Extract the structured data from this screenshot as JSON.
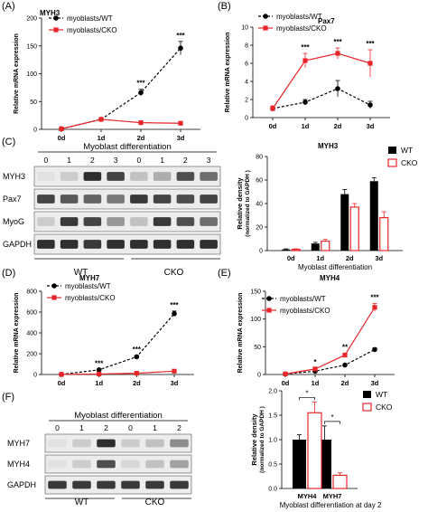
{
  "colors": {
    "wt": "#000000",
    "cko": "#e8262a",
    "axis": "#000000",
    "blot_bg": "#ececec",
    "blot_band": "#1a1a1a"
  },
  "panel_letters": {
    "A": "(A)",
    "B": "(B)",
    "C": "(C)",
    "D": "(D)",
    "E": "(E)",
    "F": "(F)"
  },
  "common": {
    "y_rel_mrna": "Relative mRNA expression",
    "days": [
      "0d",
      "1d",
      "2d",
      "3d"
    ],
    "wt_line": "myoblasts/WT",
    "cko_line": "myoblasts/CKO",
    "wt_bar": "WT",
    "cko_bar": "CKO"
  },
  "blot_c": {
    "title": "Myoblast differentiation",
    "lanes": [
      "0",
      "1",
      "2",
      "3",
      "0",
      "1",
      "2",
      "3"
    ],
    "rows": [
      {
        "label": "MYH3",
        "wt": [
          0.05,
          0.15,
          0.9,
          0.8
        ],
        "cko": [
          0.2,
          0.3,
          0.75,
          0.6
        ]
      },
      {
        "label": "Pax7",
        "wt": [
          0.8,
          0.7,
          0.65,
          0.55
        ],
        "cko": [
          0.85,
          0.8,
          0.75,
          0.8
        ]
      },
      {
        "label": "MyoG",
        "wt": [
          0.15,
          0.85,
          0.8,
          0.4
        ],
        "cko": [
          0.2,
          0.85,
          0.75,
          0.6
        ]
      },
      {
        "label": "GAPDH",
        "wt": [
          0.9,
          0.9,
          0.85,
          0.9
        ],
        "cko": [
          0.9,
          0.9,
          0.9,
          0.9
        ]
      }
    ],
    "groups": [
      "WT",
      "CKO"
    ]
  },
  "blot_f": {
    "title": "Myoblast differentiation",
    "lanes": [
      "0",
      "1",
      "2",
      "0",
      "1",
      "2"
    ],
    "rows": [
      {
        "label": "MYH7",
        "wt": [
          0.05,
          0.15,
          0.9
        ],
        "cko": [
          0.15,
          0.2,
          0.45
        ]
      },
      {
        "label": "MYH4",
        "wt": [
          0.05,
          0.15,
          0.75
        ],
        "cko": [
          0.1,
          0.2,
          0.35
        ]
      },
      {
        "label": "GAPDH",
        "wt": [
          0.85,
          0.85,
          0.85
        ],
        "cko": [
          0.85,
          0.85,
          0.85
        ]
      }
    ],
    "groups": [
      "WT",
      "CKO"
    ]
  },
  "chart_data": [
    {
      "id": "A",
      "type": "line",
      "title": "MYH3",
      "x": [
        "0d",
        "1d",
        "2d",
        "3d"
      ],
      "ylabel": "Relative mRNA expression",
      "ylim": [
        0,
        200
      ],
      "yticks": [
        0,
        50,
        100,
        150,
        200
      ],
      "series": [
        {
          "name": "myoblasts/WT",
          "values": [
            1,
            18,
            66,
            146
          ],
          "errors": [
            1,
            2,
            6,
            12
          ]
        },
        {
          "name": "myoblasts/CKO",
          "values": [
            1,
            18,
            12,
            11
          ],
          "errors": [
            0.5,
            1.5,
            1.5,
            1.5
          ]
        }
      ],
      "significance": [
        {
          "x": "2d",
          "label": "***"
        },
        {
          "x": "3d",
          "label": "***"
        }
      ],
      "legend": "top-left"
    },
    {
      "id": "B",
      "type": "line",
      "title": "Pax7",
      "x": [
        "0d",
        "1d",
        "2d",
        "3d"
      ],
      "ylabel": "Relative mRNA expression",
      "ylim": [
        0,
        10
      ],
      "yticks": [
        0,
        2,
        4,
        6,
        8,
        10
      ],
      "series": [
        {
          "name": "myoblasts/WT",
          "values": [
            1,
            1.7,
            3.2,
            1.4
          ],
          "errors": [
            0.2,
            0.3,
            0.9,
            0.4
          ]
        },
        {
          "name": "myoblasts/CKO",
          "values": [
            1,
            6.3,
            7.1,
            6.0
          ],
          "errors": [
            0.3,
            0.8,
            0.6,
            1.5
          ]
        }
      ],
      "significance": [
        {
          "x": "1d",
          "label": "***"
        },
        {
          "x": "2d",
          "label": "***"
        },
        {
          "x": "3d",
          "label": "***"
        }
      ],
      "legend": "top-left"
    },
    {
      "id": "C",
      "type": "bar",
      "title": "MYH3",
      "categories": [
        "0d",
        "1d",
        "2d",
        "3d"
      ],
      "ylabel": "Relative density (normalized to GAPDH )",
      "xlabel": "Myoblast differentiation",
      "ylim": [
        0,
        80
      ],
      "yticks": [
        0,
        20,
        40,
        60,
        80
      ],
      "series": [
        {
          "name": "WT",
          "values": [
            1,
            6,
            48,
            59
          ],
          "errors": [
            0.5,
            1,
            4,
            3
          ]
        },
        {
          "name": "CKO",
          "values": [
            1,
            8,
            37,
            28
          ],
          "errors": [
            0.5,
            1.5,
            3,
            5
          ]
        }
      ],
      "legend": "top-right"
    },
    {
      "id": "D",
      "type": "line",
      "title": "MYH7",
      "x": [
        "0d",
        "1d",
        "2d",
        "3d"
      ],
      "ylabel": "Relative mRNA expression",
      "ylim": [
        0,
        800
      ],
      "yticks": [
        0,
        200,
        400,
        600,
        800
      ],
      "series": [
        {
          "name": "myoblasts/WT",
          "values": [
            1,
            45,
            170,
            585
          ],
          "errors": [
            1,
            5,
            12,
            25
          ]
        },
        {
          "name": "myoblasts/CKO",
          "values": [
            1,
            5,
            12,
            32
          ],
          "errors": [
            0.5,
            1,
            2,
            3
          ]
        }
      ],
      "significance": [
        {
          "x": "1d",
          "label": "***"
        },
        {
          "x": "2d",
          "label": "***"
        },
        {
          "x": "3d",
          "label": "***"
        }
      ],
      "legend": "top-left"
    },
    {
      "id": "E",
      "type": "line",
      "title": "MYH4",
      "x": [
        "0d",
        "1d",
        "2d",
        "3d"
      ],
      "ylabel": "Relative mRNA expression",
      "ylim": [
        0,
        150
      ],
      "yticks": [
        0,
        50,
        100,
        150
      ],
      "series": [
        {
          "name": "myoblasts/WT",
          "values": [
            1,
            6,
            17,
            45
          ],
          "errors": [
            0.5,
            1,
            2,
            3
          ]
        },
        {
          "name": "myoblasts/CKO",
          "values": [
            1,
            10,
            35,
            121
          ],
          "errors": [
            0.5,
            1.5,
            3,
            7
          ]
        }
      ],
      "significance": [
        {
          "x": "1d",
          "label": "*"
        },
        {
          "x": "2d",
          "label": "**"
        },
        {
          "x": "3d",
          "label": "***"
        }
      ],
      "legend": "top-left"
    },
    {
      "id": "F",
      "type": "bar",
      "categories": [
        "MYH4",
        "MYH7"
      ],
      "ylabel": "Relative density (normalized to GAPDH )",
      "xlabel": "Myoblast differentiation at day 2",
      "ylim": [
        0,
        2.0
      ],
      "yticks": [
        0.0,
        0.5,
        1.0,
        1.5,
        2.0
      ],
      "series": [
        {
          "name": "WT",
          "values": [
            1.0,
            1.0
          ],
          "errors": [
            0.1,
            0.28
          ]
        },
        {
          "name": "CKO",
          "values": [
            1.55,
            0.27
          ],
          "errors": [
            0.22,
            0.05
          ]
        }
      ],
      "significance": [
        {
          "category": "MYH4",
          "label": "*"
        },
        {
          "category": "MYH7",
          "label": "*"
        }
      ],
      "legend": "top-right"
    }
  ]
}
